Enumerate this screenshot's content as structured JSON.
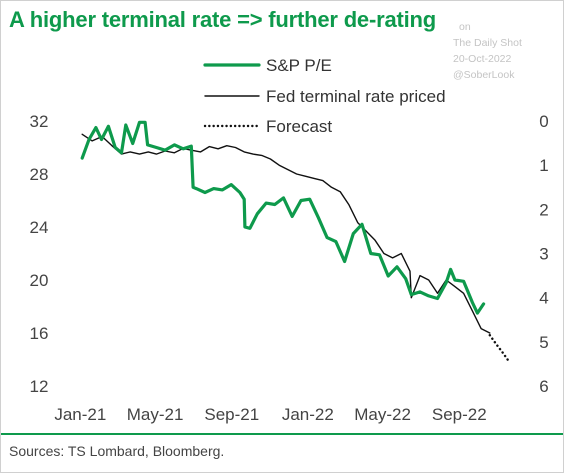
{
  "title": "A higher terminal rate => further de-rating",
  "watermark": {
    "line1": "on",
    "line2": "The Daily Shot",
    "line3": "20-Oct-2022",
    "line4": "@SoberLook"
  },
  "source": "Sources: TS Lombard, Bloomberg.",
  "colors": {
    "accent": "#0e9a4c",
    "fed": "#111111",
    "text": "#444444"
  },
  "chart_data": {
    "type": "line",
    "x_tick_labels": [
      "Jan-21",
      "May-21",
      "Sep-21",
      "Jan-22",
      "May-22",
      "Sep-22"
    ],
    "x_ticks": [
      "2021-01",
      "2021-05",
      "2021-09",
      "2022-01",
      "2022-05",
      "2022-09"
    ],
    "xlim": [
      "2020-12",
      "2022-12"
    ],
    "y_left": {
      "ticks": [
        32,
        28,
        24,
        20,
        16,
        12
      ],
      "ylim": [
        12,
        32
      ]
    },
    "y_right": {
      "ticks": [
        0,
        1,
        2,
        3,
        4,
        5,
        6
      ],
      "ylim": [
        0,
        6
      ],
      "inverted": true
    },
    "legend": {
      "position": "top-center"
    },
    "series": [
      {
        "name": "S&P P/E",
        "axis": "left",
        "style": "solid-thick",
        "color": "#0e9a4c",
        "points": [
          [
            "2021-01-04",
            29.2
          ],
          [
            "2021-01-15",
            30.6
          ],
          [
            "2021-01-26",
            31.5
          ],
          [
            "2021-02-04",
            30.6
          ],
          [
            "2021-02-15",
            31.6
          ],
          [
            "2021-02-26",
            30.0
          ],
          [
            "2021-03-08",
            29.6
          ],
          [
            "2021-03-15",
            31.7
          ],
          [
            "2021-03-26",
            30.3
          ],
          [
            "2021-04-06",
            31.9
          ],
          [
            "2021-04-15",
            31.9
          ],
          [
            "2021-04-19",
            30.2
          ],
          [
            "2021-05-03",
            30.0
          ],
          [
            "2021-05-17",
            29.8
          ],
          [
            "2021-06-01",
            30.2
          ],
          [
            "2021-06-15",
            29.9
          ],
          [
            "2021-06-28",
            30.1
          ],
          [
            "2021-07-01",
            27.0
          ],
          [
            "2021-07-06",
            26.9
          ],
          [
            "2021-07-20",
            26.6
          ],
          [
            "2021-08-03",
            26.9
          ],
          [
            "2021-08-17",
            26.8
          ],
          [
            "2021-08-31",
            27.2
          ],
          [
            "2021-09-14",
            26.6
          ],
          [
            "2021-09-21",
            26.1
          ],
          [
            "2021-09-22",
            24.0
          ],
          [
            "2021-09-30",
            23.9
          ],
          [
            "2021-10-12",
            25.0
          ],
          [
            "2021-10-26",
            25.8
          ],
          [
            "2021-11-09",
            25.7
          ],
          [
            "2021-11-23",
            26.2
          ],
          [
            "2021-12-07",
            24.8
          ],
          [
            "2021-12-21",
            26.0
          ],
          [
            "2022-01-04",
            26.1
          ],
          [
            "2022-01-18",
            24.7
          ],
          [
            "2022-02-01",
            23.2
          ],
          [
            "2022-02-15",
            22.9
          ],
          [
            "2022-03-01",
            21.4
          ],
          [
            "2022-03-15",
            23.5
          ],
          [
            "2022-03-29",
            24.2
          ],
          [
            "2022-04-12",
            22.0
          ],
          [
            "2022-04-26",
            21.9
          ],
          [
            "2022-05-10",
            20.3
          ],
          [
            "2022-05-24",
            21.0
          ],
          [
            "2022-06-07",
            20.1
          ],
          [
            "2022-06-16",
            18.9
          ],
          [
            "2022-06-30",
            19.1
          ],
          [
            "2022-07-14",
            18.8
          ],
          [
            "2022-07-28",
            18.6
          ],
          [
            "2022-08-11",
            19.8
          ],
          [
            "2022-08-18",
            20.8
          ],
          [
            "2022-08-25",
            20.0
          ],
          [
            "2022-09-08",
            19.9
          ],
          [
            "2022-09-22",
            18.3
          ],
          [
            "2022-09-30",
            17.5
          ],
          [
            "2022-10-10",
            18.2
          ]
        ]
      },
      {
        "name": "Fed terminal rate priced",
        "axis": "right",
        "style": "solid-thin",
        "color": "#111111",
        "points": [
          [
            "2021-01-04",
            0.3
          ],
          [
            "2021-01-20",
            0.45
          ],
          [
            "2021-02-05",
            0.35
          ],
          [
            "2021-02-20",
            0.55
          ],
          [
            "2021-03-08",
            0.75
          ],
          [
            "2021-03-22",
            0.7
          ],
          [
            "2021-04-06",
            0.75
          ],
          [
            "2021-04-20",
            0.7
          ],
          [
            "2021-05-03",
            0.75
          ],
          [
            "2021-05-17",
            0.68
          ],
          [
            "2021-06-01",
            0.72
          ],
          [
            "2021-06-15",
            0.62
          ],
          [
            "2021-06-28",
            0.66
          ],
          [
            "2021-07-13",
            0.7
          ],
          [
            "2021-07-27",
            0.58
          ],
          [
            "2021-08-10",
            0.63
          ],
          [
            "2021-08-24",
            0.56
          ],
          [
            "2021-09-07",
            0.6
          ],
          [
            "2021-09-21",
            0.7
          ],
          [
            "2021-10-05",
            0.75
          ],
          [
            "2021-10-19",
            0.78
          ],
          [
            "2021-11-02",
            0.86
          ],
          [
            "2021-11-16",
            1.0
          ],
          [
            "2021-11-30",
            1.1
          ],
          [
            "2021-12-14",
            1.2
          ],
          [
            "2021-12-28",
            1.25
          ],
          [
            "2022-01-11",
            1.3
          ],
          [
            "2022-01-25",
            1.35
          ],
          [
            "2022-02-08",
            1.5
          ],
          [
            "2022-02-22",
            1.6
          ],
          [
            "2022-03-08",
            1.9
          ],
          [
            "2022-03-22",
            2.3
          ],
          [
            "2022-04-05",
            2.5
          ],
          [
            "2022-04-19",
            2.7
          ],
          [
            "2022-05-03",
            3.0
          ],
          [
            "2022-05-17",
            3.1
          ],
          [
            "2022-05-31",
            3.0
          ],
          [
            "2022-06-14",
            3.4
          ],
          [
            "2022-06-16",
            4.0
          ],
          [
            "2022-06-30",
            3.5
          ],
          [
            "2022-07-14",
            3.6
          ],
          [
            "2022-07-28",
            3.9
          ],
          [
            "2022-08-11",
            3.6
          ],
          [
            "2022-08-25",
            3.75
          ],
          [
            "2022-09-08",
            3.9
          ],
          [
            "2022-09-22",
            4.3
          ],
          [
            "2022-10-06",
            4.7
          ],
          [
            "2022-10-20",
            4.8
          ]
        ]
      },
      {
        "name": "Forecast",
        "axis": "right",
        "style": "dotted",
        "color": "#111111",
        "points": [
          [
            "2022-10-20",
            4.85
          ],
          [
            "2022-10-30",
            5.05
          ],
          [
            "2022-11-10",
            5.25
          ],
          [
            "2022-11-20",
            5.45
          ]
        ]
      }
    ]
  }
}
